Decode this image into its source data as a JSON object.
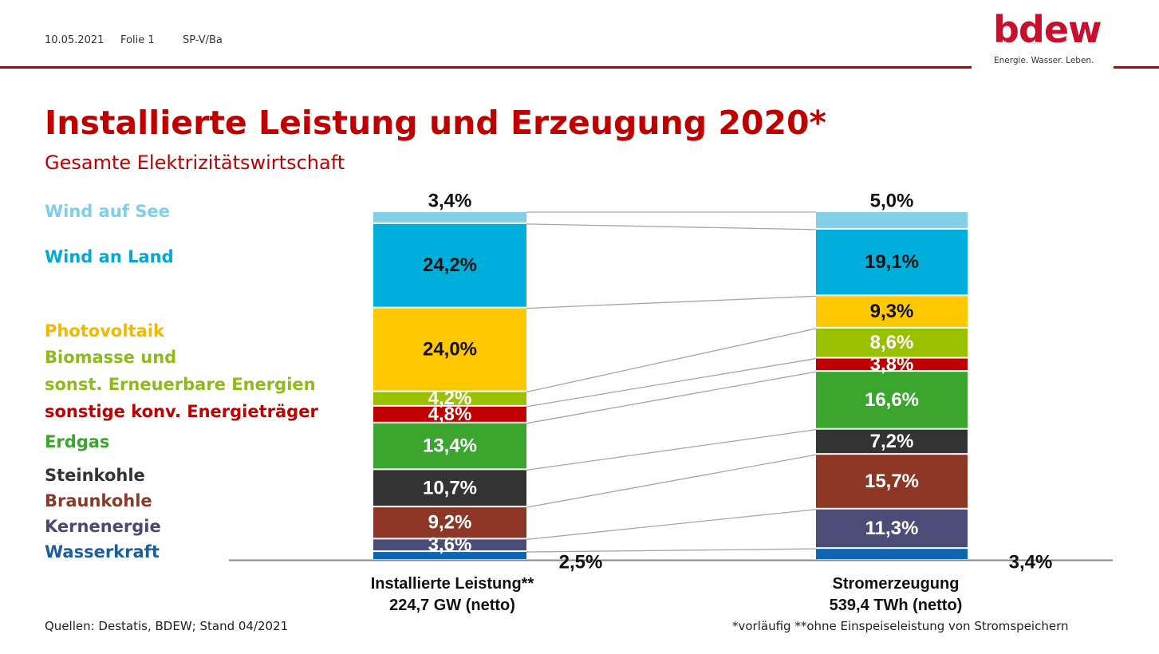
{
  "header": {
    "date": "10.05.2021",
    "slide": "Folie 1",
    "author": "SP-V/Ba"
  },
  "logo": {
    "name": "bdew",
    "tagline": "Energie. Wasser. Leben."
  },
  "title": "Installierte Leistung und Erzeugung 2020*",
  "subtitle": "Gesamte Elektrizitätswirtschaft",
  "legend": [
    {
      "label": "Wind auf See",
      "color": "#7ecfea"
    },
    {
      "label": "Wind an Land",
      "color": "#00a9d6"
    },
    {
      "label": "Photovoltaik",
      "color": "#f5b800"
    },
    {
      "label": "Biomasse und",
      "color": "#8dbb1a"
    },
    {
      "label": "sonst. Erneuerbare Energien",
      "color": "#8dbb1a"
    },
    {
      "label": "sonstige konv. Energieträger",
      "color": "#c00000"
    },
    {
      "label": "Erdgas",
      "color": "#3aa62e"
    },
    {
      "label": "Steinkohle",
      "color": "#333333"
    },
    {
      "label": "Braunkohle",
      "color": "#8b3a2a"
    },
    {
      "label": "Kernenergie",
      "color": "#4a4a6e"
    },
    {
      "label": "Wasserkraft",
      "color": "#1a5fa0"
    }
  ],
  "footer": {
    "source": "Quellen: Destatis, BDEW; Stand 04/2021",
    "note": "*vorläufig **ohne Einspeiseleistung von Stromspeichern"
  },
  "chart_data": {
    "type": "bar",
    "stacked": true,
    "normalized": true,
    "categories": [
      {
        "line1": "Installierte Leistung**",
        "line2": "224,7 GW (netto)"
      },
      {
        "line1": "Stromerzeugung",
        "line2": "539,4 TWh (netto)"
      }
    ],
    "series": [
      {
        "name": "Wasserkraft",
        "color": "#0f66b0",
        "values": [
          2.5,
          3.4
        ],
        "labels": [
          "2,5%",
          "3,4%"
        ],
        "label_color": "#111111"
      },
      {
        "name": "Kernenergie",
        "color": "#4b4c78",
        "values": [
          3.6,
          11.3
        ],
        "labels": [
          "3,6%",
          "11,3%"
        ],
        "label_color": "#ffffff"
      },
      {
        "name": "Braunkohle",
        "color": "#8d3626",
        "values": [
          9.2,
          15.7
        ],
        "labels": [
          "9,2%",
          "15,7%"
        ],
        "label_color": "#ffffff"
      },
      {
        "name": "Steinkohle",
        "color": "#333333",
        "values": [
          10.7,
          7.2
        ],
        "labels": [
          "10,7%",
          "7,2%"
        ],
        "label_color": "#ffffff"
      },
      {
        "name": "Erdgas",
        "color": "#3aa62e",
        "values": [
          13.4,
          16.6
        ],
        "labels": [
          "13,4%",
          "16,6%"
        ],
        "label_color": "#ffffff"
      },
      {
        "name": "sonstige konv. Energieträger",
        "color": "#c00000",
        "values": [
          4.8,
          3.8
        ],
        "labels": [
          "4,8%",
          "3,8%"
        ],
        "label_color": "#ffffff"
      },
      {
        "name": "Biomasse und sonst. Erneuerbare Energien",
        "color": "#9ac100",
        "values": [
          4.2,
          8.6
        ],
        "labels": [
          "4,2%",
          "8,6%"
        ],
        "label_color": "#ffffff"
      },
      {
        "name": "Photovoltaik",
        "color": "#ffc800",
        "values": [
          24.0,
          9.3
        ],
        "labels": [
          "24,0%",
          "9,3%"
        ],
        "label_color": "#111111"
      },
      {
        "name": "Wind an Land",
        "color": "#00aedb",
        "values": [
          24.2,
          19.1
        ],
        "labels": [
          "24,2%",
          "19,1%"
        ],
        "label_color": "#111111"
      },
      {
        "name": "Wind auf See",
        "color": "#84cfe8",
        "values": [
          3.4,
          5.0
        ],
        "labels": [
          "3,4%",
          "5,0%"
        ],
        "label_color": "#111111"
      }
    ],
    "connector_color": "#a6a6a6",
    "baseline_color": "#888888"
  }
}
